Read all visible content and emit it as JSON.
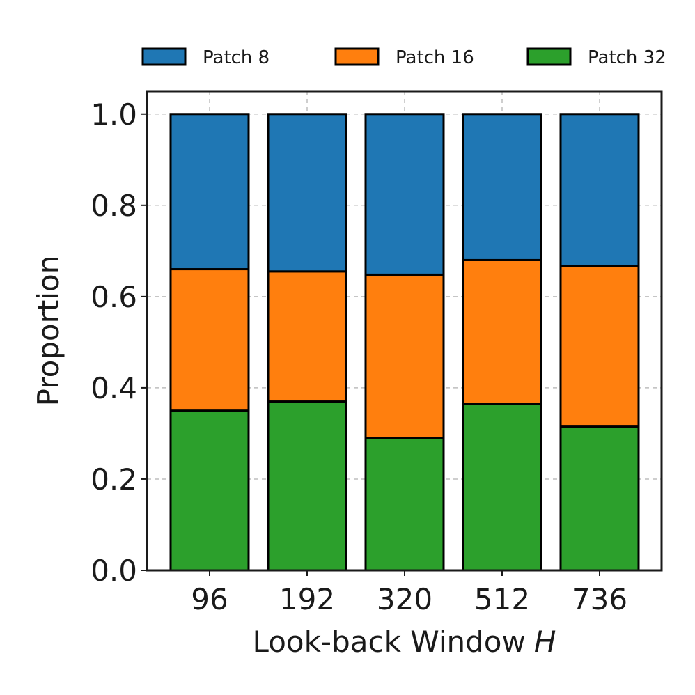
{
  "chart_data": {
    "type": "bar",
    "stacked": true,
    "categories": [
      "96",
      "192",
      "320",
      "512",
      "736"
    ],
    "series": [
      {
        "name": "Patch 32",
        "color": "#2ca02c",
        "values": [
          0.35,
          0.37,
          0.29,
          0.365,
          0.315
        ]
      },
      {
        "name": "Patch 16",
        "color": "#ff7f0e",
        "values": [
          0.31,
          0.285,
          0.358,
          0.315,
          0.352
        ]
      },
      {
        "name": "Patch 8",
        "color": "#1f77b4",
        "values": [
          0.34,
          0.345,
          0.352,
          0.32,
          0.333
        ]
      }
    ],
    "xlabel": "Look-back Window",
    "xlabel_symbol": "H",
    "ylabel": "Proportion",
    "ylim": [
      0.0,
      1.05
    ],
    "yticks": [
      "0.0",
      "0.2",
      "0.4",
      "0.6",
      "0.8",
      "1.0"
    ],
    "ytick_values": [
      0.0,
      0.2,
      0.4,
      0.6,
      0.8,
      1.0
    ],
    "grid": true,
    "legend_position": "top"
  }
}
